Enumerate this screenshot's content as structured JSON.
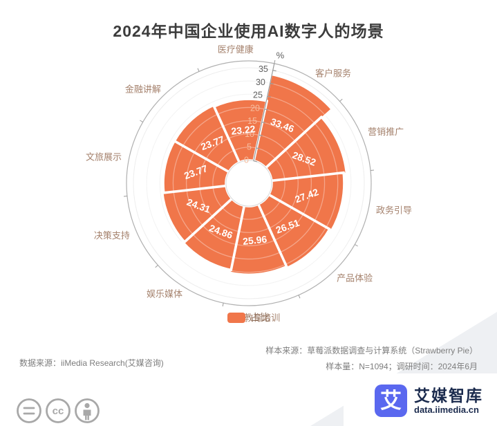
{
  "title": "2024年中国企业使用AI数字人的场景",
  "chart_data": {
    "type": "pie",
    "subtype": "nightingale-rose-polar-bar",
    "title": "2024年中国企业使用AI数字人的场景",
    "series_name": "占比",
    "unit": "%",
    "categories": [
      "客户服务",
      "营销推广",
      "政务引导",
      "产品体验",
      "教育培训",
      "娱乐媒体",
      "决策支持",
      "文旅展示",
      "金融讲解",
      "医疗健康"
    ],
    "values": [
      33.46,
      28.52,
      27.42,
      26.51,
      25.96,
      24.86,
      24.31,
      23.77,
      23.77,
      23.22
    ],
    "radial_axis": {
      "min": 0,
      "max": 35,
      "ticks": [
        0,
        5,
        10,
        15,
        20,
        25,
        30,
        35
      ],
      "unit_label": "%"
    },
    "start_angle_deg": 78,
    "direction": "clockwise",
    "grid": true,
    "legend_position": "bottom"
  },
  "legend": {
    "label": "占比",
    "color": "#F0764A"
  },
  "colors": {
    "accent": "#F0764A",
    "value_label": "#FFFFFF",
    "category_label": "#A5826D",
    "axis_line": "#9a9a9a",
    "outer_circle": "#b0b0b0",
    "grid_ring": "#ededed",
    "tick_label_dark": "#5f5f5f",
    "tick_label_light": "#f6bd9e",
    "hole_stroke": "#d9d9d9"
  },
  "footnotes": {
    "sample_source": "样本来源：草莓派数据调查与计算系统（Strawberry Pie）",
    "sample_size": "样本量：N=1094；调研时间：2024年6月",
    "data_source": "数据来源：iiMedia Research(艾媒咨询)"
  },
  "footer": {
    "brand": "艾媒智库",
    "site": "data.iimedia.cn",
    "logo_char": "艾",
    "logo_color": "#5A68EF",
    "brand_text_color": "#1a2a4d",
    "license_icons": [
      "equals-icon",
      "cc-icon",
      "person-icon"
    ]
  }
}
